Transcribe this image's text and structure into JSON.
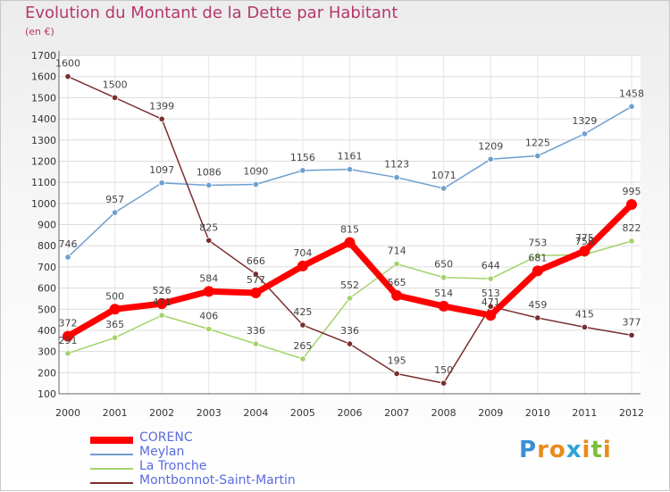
{
  "title": "Evolution du Montant de la Dette par Habitant",
  "subtitle": "(en €)",
  "brand": {
    "letters": [
      {
        "ch": "P",
        "color": "#3a8fd6"
      },
      {
        "ch": "r",
        "color": "#e98b1c"
      },
      {
        "ch": "o",
        "color": "#e98b1c"
      },
      {
        "ch": "x",
        "color": "#2fa3d8"
      },
      {
        "ch": "i",
        "color": "#e98b1c"
      },
      {
        "ch": "t",
        "color": "#7bbf3a"
      },
      {
        "ch": "i",
        "color": "#e98b1c"
      }
    ]
  },
  "chart_data": {
    "type": "line",
    "title": "Evolution du Montant de la Dette par Habitant",
    "subtitle": "(en €)",
    "xlabel": "",
    "ylabel": "",
    "x": [
      "2000",
      "2001",
      "2002",
      "2003",
      "2004",
      "2005",
      "2006",
      "2007",
      "2008",
      "2009",
      "2010",
      "2011",
      "2012"
    ],
    "ylim": [
      100,
      1700
    ],
    "yticks": [
      100,
      200,
      300,
      400,
      500,
      600,
      700,
      800,
      900,
      1000,
      1100,
      1200,
      1300,
      1400,
      1500,
      1600,
      1700
    ],
    "grid": true,
    "legend": "bottom-left",
    "series": [
      {
        "name": "CORENC",
        "color": "#ff0000",
        "values": [
          372,
          500,
          526,
          584,
          577,
          704,
          815,
          565,
          514,
          471,
          681,
          775,
          995
        ]
      },
      {
        "name": "Meylan",
        "color": "#6e9fce",
        "values": [
          746,
          957,
          1097,
          1086,
          1090,
          1156,
          1161,
          1123,
          1071,
          1209,
          1225,
          1329,
          1458
        ]
      },
      {
        "name": "La Tronche",
        "color": "#a3d36a",
        "values": [
          291,
          365,
          471,
          406,
          336,
          265,
          552,
          714,
          650,
          644,
          753,
          758,
          822
        ]
      },
      {
        "name": "Montbonnot-Saint-Martin",
        "color": "#7a2e2e",
        "values": [
          1600,
          1500,
          1399,
          825,
          666,
          425,
          336,
          195,
          150,
          513,
          459,
          415,
          377
        ]
      }
    ]
  }
}
